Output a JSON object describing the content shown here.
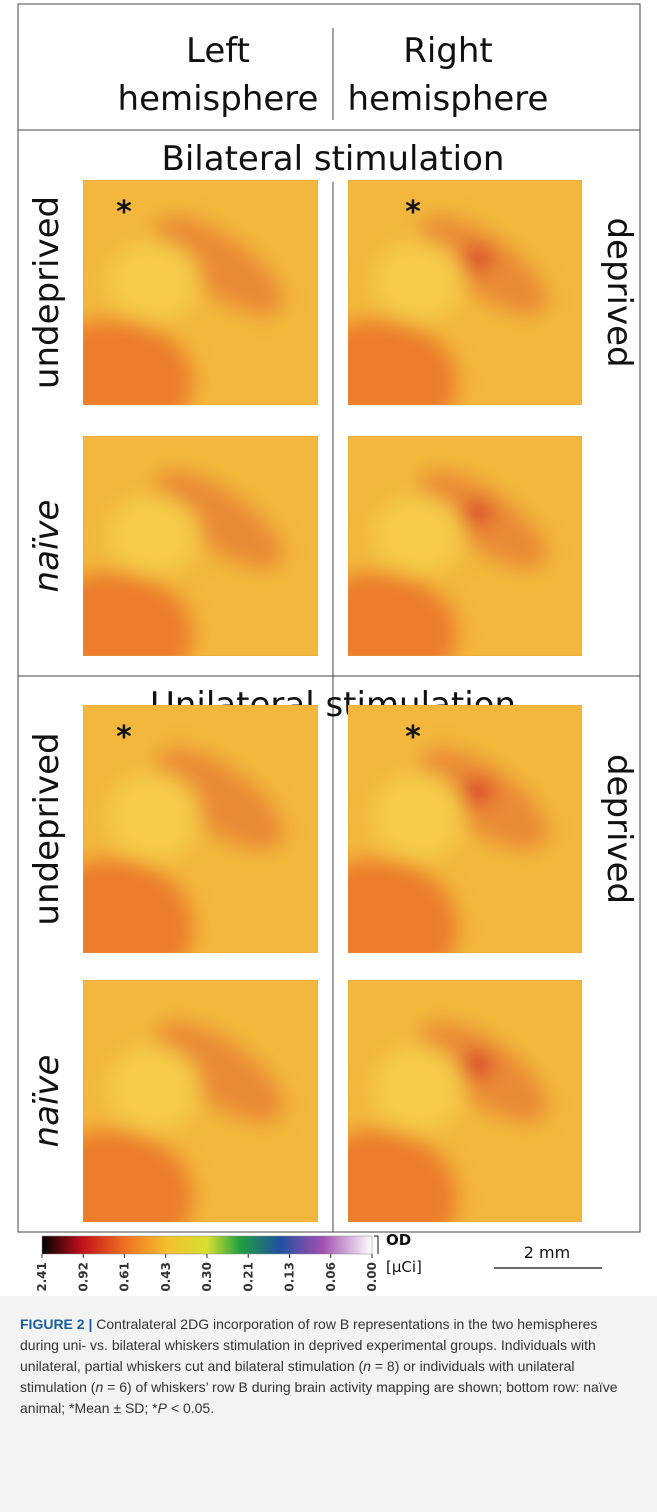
{
  "header": {
    "left": [
      "Left",
      "hemisphere"
    ],
    "right": [
      "Right",
      "hemisphere"
    ]
  },
  "sections": [
    {
      "title": "Bilateral stimulation",
      "rows": [
        {
          "left_label": "undeprived",
          "right_label": "deprived",
          "left_mark": "*",
          "right_mark": "*"
        },
        {
          "left_label": "naïve"
        }
      ]
    },
    {
      "title": "Unilateral stimulation",
      "rows": [
        {
          "left_label": "undeprived",
          "right_label": "deprived",
          "left_mark": "*",
          "right_mark": "*"
        },
        {
          "left_label": "naïve"
        }
      ]
    }
  ],
  "colorbar": {
    "ticks": [
      "2.41",
      "0.92",
      "0.61",
      "0.43",
      "0.30",
      "0.21",
      "0.13",
      "0.06",
      "0.00"
    ],
    "unit_top": "OD",
    "unit_bottom": "[μCi]"
  },
  "scale_bar": "2 mm",
  "caption": {
    "label": "FIGURE 2 |",
    "parts": [
      "Contralateral 2DG incorporation of row B representations in the two hemispheres during uni- vs. bilateral whiskers stimulation in deprived experimental groups. Individuals with unilateral, partial whiskers cut and bilateral stimulation (",
      "n",
      " = 8) or individuals with unilateral stimulation (",
      "n",
      " = 6) of whiskers’ row B during brain activity mapping are shown; bottom row: naïve animal; *Mean ± SD; *",
      "P",
      " < 0.05."
    ]
  }
}
